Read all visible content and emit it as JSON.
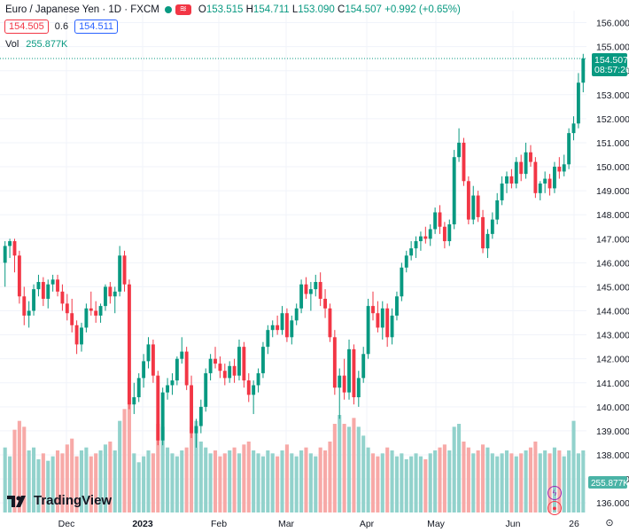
{
  "header": {
    "symbol": "Euro / Japanese Yen · 1D · FXCM",
    "open_label": "O",
    "open": "153.515",
    "high_label": "H",
    "high": "154.711",
    "low_label": "L",
    "low": "153.090",
    "close_label": "C",
    "close": "154.507",
    "change": "+0.992 (+0.65%)",
    "sell_price": "154.505",
    "spread": "0.6",
    "buy_price": "154.511",
    "vol_label": "Vol",
    "vol_value": "255.877K"
  },
  "axis": {
    "last_price_label": "154.507",
    "countdown": "08:57:26",
    "vol_tag": "255.877K",
    "settings_icon": "gear-icon",
    "axis_auto_label": "⊙"
  },
  "logo": {
    "text": "TradingView"
  },
  "colors": {
    "up": "#089981",
    "down": "#f23645",
    "up_vol": "#92d2cc",
    "down_vol": "#f7a9a7"
  },
  "chart_data": {
    "type": "candlestick",
    "x_ticks": [
      "Dec",
      "2023",
      "Feb",
      "Mar",
      "Apr",
      "May",
      "Jun",
      "26"
    ],
    "y_ticks": [
      136,
      137,
      138,
      139,
      140,
      141,
      142,
      143,
      144,
      145,
      146,
      147,
      148,
      149,
      150,
      151,
      152,
      153,
      154,
      155,
      156
    ],
    "ylim": [
      135.6,
      156.5
    ],
    "last_price": 154.507,
    "candles": [
      [
        146.0,
        146.9,
        145.0,
        146.7
      ],
      [
        146.7,
        147.0,
        146.2,
        146.9
      ],
      [
        146.9,
        147.0,
        145.6,
        146.3
      ],
      [
        146.3,
        146.5,
        144.3,
        144.6
      ],
      [
        144.6,
        145.0,
        143.4,
        143.8
      ],
      [
        143.8,
        144.4,
        143.3,
        144.0
      ],
      [
        144.0,
        145.1,
        143.8,
        144.9
      ],
      [
        144.9,
        145.5,
        144.6,
        145.2
      ],
      [
        145.2,
        145.4,
        144.2,
        144.5
      ],
      [
        144.5,
        145.3,
        144.1,
        145.1
      ],
      [
        145.1,
        145.5,
        144.8,
        145.3
      ],
      [
        145.3,
        145.5,
        144.6,
        144.8
      ],
      [
        144.8,
        145.1,
        144.0,
        144.3
      ],
      [
        144.3,
        144.7,
        143.6,
        143.9
      ],
      [
        143.9,
        144.5,
        143.1,
        143.4
      ],
      [
        143.4,
        143.6,
        142.2,
        142.6
      ],
      [
        142.6,
        143.5,
        142.3,
        143.3
      ],
      [
        143.3,
        144.3,
        143.1,
        144.1
      ],
      [
        144.1,
        144.8,
        143.8,
        144.0
      ],
      [
        144.0,
        144.4,
        143.5,
        143.8
      ],
      [
        143.8,
        144.3,
        143.5,
        144.2
      ],
      [
        144.2,
        145.1,
        144.0,
        145.0
      ],
      [
        145.0,
        145.2,
        144.3,
        144.6
      ],
      [
        144.6,
        145.0,
        143.9,
        144.8
      ],
      [
        144.8,
        146.7,
        144.6,
        146.3
      ],
      [
        146.3,
        146.5,
        144.8,
        145.1
      ],
      [
        145.1,
        145.3,
        139.9,
        140.1
      ],
      [
        140.1,
        141.0,
        139.7,
        140.4
      ],
      [
        140.4,
        141.4,
        140.2,
        141.2
      ],
      [
        141.2,
        142.2,
        140.8,
        141.9
      ],
      [
        141.9,
        142.9,
        141.6,
        142.6
      ],
      [
        142.6,
        142.8,
        141.0,
        141.3
      ],
      [
        141.3,
        141.5,
        138.4,
        138.6
      ],
      [
        138.6,
        140.8,
        138.4,
        140.6
      ],
      [
        140.6,
        141.2,
        140.3,
        140.9
      ],
      [
        140.9,
        141.4,
        140.5,
        141.1
      ],
      [
        141.1,
        142.1,
        140.9,
        142.0
      ],
      [
        142.0,
        142.9,
        141.8,
        142.3
      ],
      [
        142.3,
        142.5,
        140.7,
        140.9
      ],
      [
        140.9,
        141.3,
        138.7,
        138.9
      ],
      [
        138.9,
        139.5,
        138.3,
        139.2
      ],
      [
        139.2,
        140.3,
        138.9,
        140.0
      ],
      [
        140.0,
        141.6,
        139.8,
        141.4
      ],
      [
        141.4,
        142.2,
        141.1,
        142.0
      ],
      [
        142.0,
        142.5,
        141.6,
        141.8
      ],
      [
        141.8,
        142.1,
        141.2,
        141.5
      ],
      [
        141.5,
        141.8,
        140.9,
        141.2
      ],
      [
        141.2,
        141.9,
        141.0,
        141.7
      ],
      [
        141.7,
        142.0,
        141.0,
        141.3
      ],
      [
        141.3,
        142.8,
        141.1,
        142.5
      ],
      [
        142.5,
        142.7,
        140.8,
        141.1
      ],
      [
        141.1,
        141.4,
        140.2,
        140.5
      ],
      [
        140.5,
        141.1,
        139.7,
        140.9
      ],
      [
        140.9,
        141.6,
        140.6,
        141.4
      ],
      [
        141.4,
        142.7,
        141.2,
        142.5
      ],
      [
        142.5,
        143.4,
        142.2,
        143.2
      ],
      [
        143.2,
        143.6,
        142.9,
        143.4
      ],
      [
        143.4,
        143.8,
        143.0,
        143.2
      ],
      [
        143.2,
        144.2,
        143.0,
        143.9
      ],
      [
        143.9,
        144.1,
        142.7,
        142.9
      ],
      [
        142.9,
        143.8,
        142.6,
        143.6
      ],
      [
        143.6,
        144.3,
        143.4,
        144.1
      ],
      [
        144.1,
        145.3,
        143.9,
        145.1
      ],
      [
        145.1,
        145.4,
        144.5,
        144.7
      ],
      [
        144.7,
        145.2,
        144.0,
        144.9
      ],
      [
        144.9,
        145.5,
        144.6,
        145.2
      ],
      [
        145.2,
        145.6,
        144.2,
        144.5
      ],
      [
        144.5,
        144.9,
        143.7,
        144.1
      ],
      [
        144.1,
        144.3,
        142.7,
        142.9
      ],
      [
        142.9,
        143.2,
        140.5,
        140.8
      ],
      [
        140.8,
        141.6,
        139.5,
        141.3
      ],
      [
        141.3,
        142.0,
        140.3,
        140.6
      ],
      [
        140.6,
        142.8,
        140.3,
        142.4
      ],
      [
        142.4,
        142.6,
        140.1,
        140.4
      ],
      [
        140.4,
        141.5,
        140.0,
        141.2
      ],
      [
        141.2,
        142.5,
        141.0,
        142.2
      ],
      [
        142.2,
        144.5,
        142.0,
        144.2
      ],
      [
        144.2,
        144.8,
        143.6,
        143.9
      ],
      [
        143.9,
        144.4,
        143.1,
        143.3
      ],
      [
        143.3,
        144.4,
        142.8,
        144.1
      ],
      [
        144.1,
        144.3,
        142.5,
        142.9
      ],
      [
        142.9,
        144.1,
        142.6,
        143.8
      ],
      [
        143.8,
        144.8,
        143.6,
        144.6
      ],
      [
        144.6,
        146.0,
        144.4,
        145.8
      ],
      [
        145.8,
        146.5,
        145.6,
        146.3
      ],
      [
        146.3,
        146.9,
        146.1,
        146.6
      ],
      [
        146.6,
        147.1,
        146.2,
        146.9
      ],
      [
        146.9,
        147.3,
        146.5,
        147.1
      ],
      [
        147.1,
        147.5,
        146.8,
        147.0
      ],
      [
        147.0,
        147.6,
        146.7,
        147.4
      ],
      [
        147.4,
        148.3,
        147.2,
        148.1
      ],
      [
        148.1,
        148.4,
        147.2,
        147.5
      ],
      [
        147.5,
        147.7,
        146.6,
        146.9
      ],
      [
        146.9,
        147.8,
        146.7,
        147.6
      ],
      [
        147.6,
        150.7,
        147.4,
        150.4
      ],
      [
        150.4,
        151.6,
        150.2,
        151.0
      ],
      [
        151.0,
        151.2,
        149.2,
        149.4
      ],
      [
        149.4,
        149.6,
        147.6,
        147.8
      ],
      [
        147.8,
        149.2,
        147.6,
        148.8
      ],
      [
        148.8,
        149.0,
        147.7,
        147.9
      ],
      [
        147.9,
        148.2,
        146.4,
        146.6
      ],
      [
        146.6,
        147.4,
        146.2,
        147.2
      ],
      [
        147.2,
        148.1,
        147.0,
        147.8
      ],
      [
        147.8,
        148.9,
        147.6,
        148.6
      ],
      [
        148.6,
        149.6,
        148.4,
        149.3
      ],
      [
        149.3,
        149.8,
        148.9,
        149.6
      ],
      [
        149.6,
        149.9,
        149.1,
        149.3
      ],
      [
        149.3,
        150.4,
        149.1,
        150.2
      ],
      [
        150.2,
        150.5,
        149.4,
        149.7
      ],
      [
        149.7,
        151.0,
        149.5,
        150.6
      ],
      [
        150.6,
        150.9,
        150.0,
        150.2
      ],
      [
        150.2,
        150.4,
        148.7,
        148.9
      ],
      [
        148.9,
        149.4,
        148.6,
        149.3
      ],
      [
        149.3,
        149.8,
        148.9,
        149.5
      ],
      [
        149.5,
        149.7,
        148.8,
        149.1
      ],
      [
        149.1,
        150.2,
        148.9,
        150.0
      ],
      [
        150.0,
        150.4,
        149.5,
        149.8
      ],
      [
        149.8,
        150.5,
        149.6,
        150.1
      ],
      [
        150.1,
        151.6,
        149.9,
        151.4
      ],
      [
        151.4,
        152.1,
        151.1,
        151.8
      ],
      [
        151.8,
        153.9,
        151.6,
        153.5
      ],
      [
        153.5,
        154.7,
        153.1,
        154.507
      ]
    ],
    "volume_ylim": [
      0,
      120
    ],
    "volume": [
      44,
      38,
      56,
      62,
      58,
      42,
      44,
      36,
      40,
      35,
      38,
      42,
      40,
      46,
      50,
      38,
      42,
      44,
      38,
      40,
      42,
      46,
      48,
      42,
      62,
      70,
      96,
      40,
      34,
      38,
      42,
      40,
      60,
      58,
      44,
      40,
      38,
      42,
      44,
      58,
      62,
      48,
      44,
      40,
      42,
      38,
      40,
      42,
      44,
      40,
      46,
      48,
      42,
      40,
      38,
      42,
      40,
      38,
      42,
      46,
      40,
      38,
      42,
      44,
      40,
      38,
      44,
      42,
      48,
      60,
      66,
      60,
      58,
      64,
      58,
      52,
      44,
      40,
      38,
      40,
      44,
      42,
      38,
      40,
      36,
      38,
      40,
      38,
      36,
      40,
      42,
      44,
      46,
      42,
      58,
      60,
      48,
      44,
      40,
      42,
      46,
      44,
      40,
      38,
      40,
      42,
      40,
      38,
      40,
      42,
      44,
      48,
      40,
      42,
      40,
      44,
      42,
      38,
      42,
      62,
      40,
      42,
      45
    ]
  }
}
